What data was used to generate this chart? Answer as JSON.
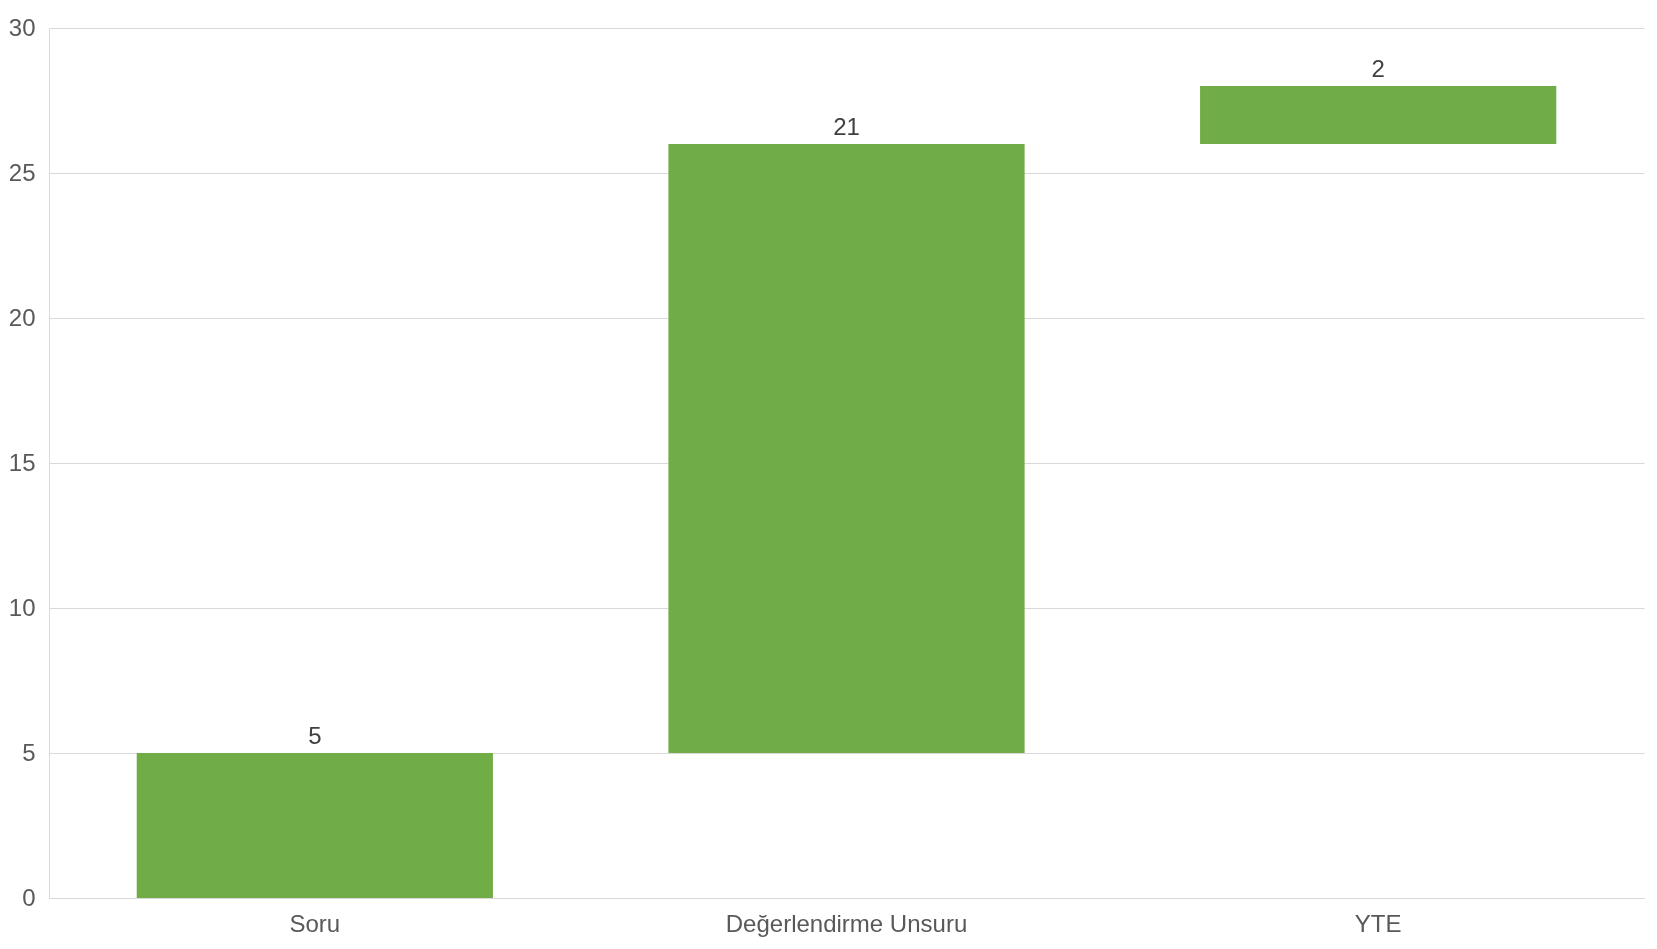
{
  "chart_data": {
    "type": "bar",
    "categories": [
      "Soru",
      "Değerlendirme Unsuru",
      "YTE"
    ],
    "values": [
      5,
      21,
      2
    ],
    "base": [
      0,
      5,
      26
    ],
    "color": "#70ad47",
    "ylim": [
      0,
      30
    ],
    "yticks": [
      0,
      5,
      10,
      15,
      20,
      25,
      30
    ],
    "grid": "y",
    "data_labels": true
  }
}
